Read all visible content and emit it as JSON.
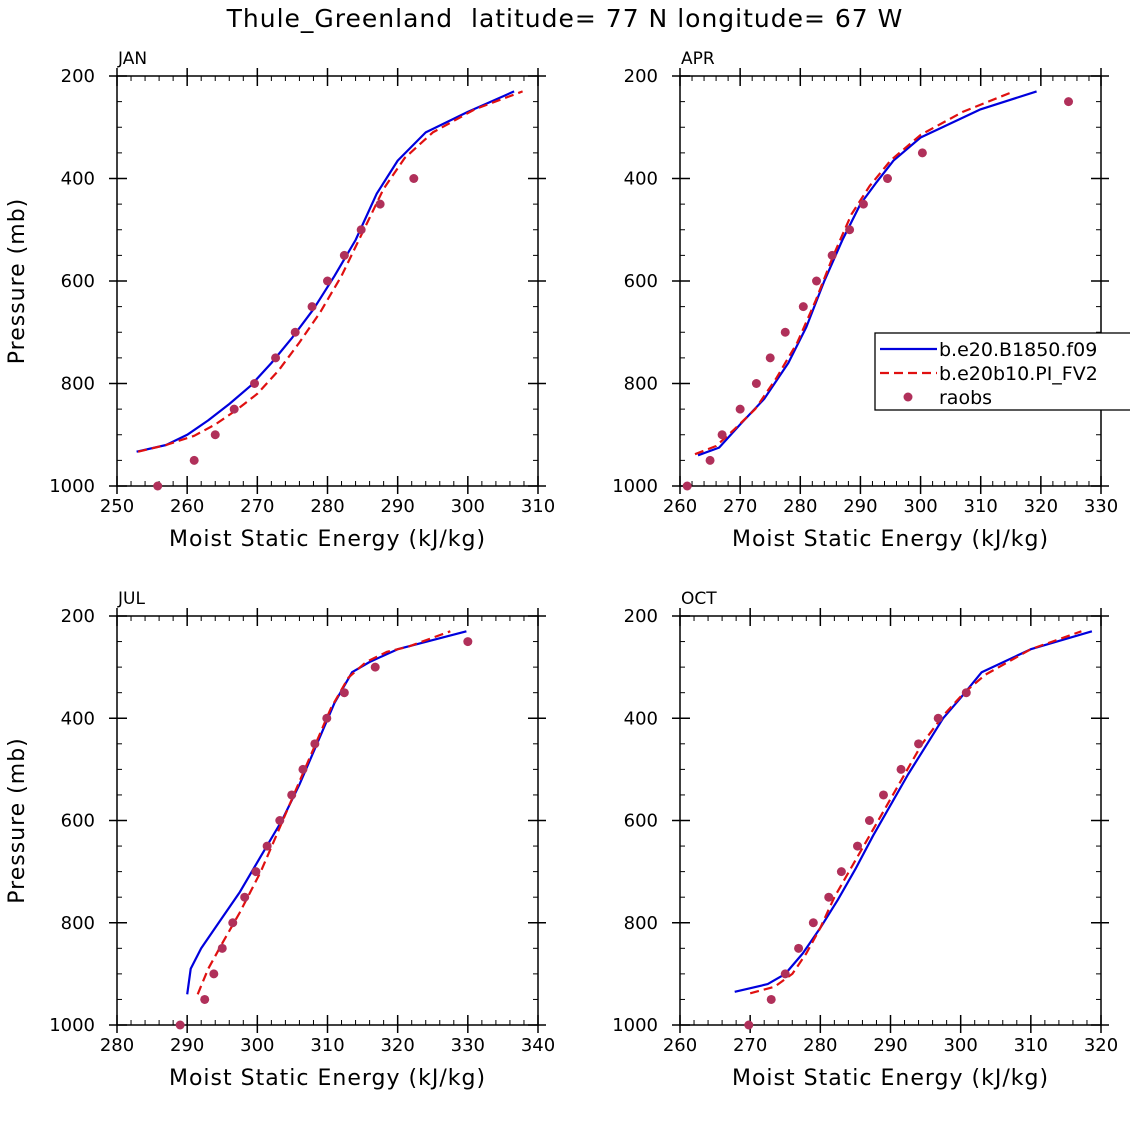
{
  "figure": {
    "title": "Thule_Greenland  latitude= 77 N longitude= 67 W"
  },
  "colors": {
    "series_1": "#0000dd",
    "series_2": "#e01010",
    "observations": "#b0305a",
    "axes": "#000000",
    "background": "#ffffff"
  },
  "legend": {
    "placement": "right-middle of APR panel",
    "entries": [
      {
        "label": "b.e20.B1850.f09",
        "style": "solid-line",
        "color": "#0000dd"
      },
      {
        "label": "b.e20b10.PI_FV2",
        "style": "dashed-line",
        "color": "#e01010"
      },
      {
        "label": "raobs",
        "style": "marker",
        "color": "#b0305a"
      }
    ]
  },
  "chart_data": [
    {
      "type": "line",
      "panel": "JAN",
      "xlabel": "Moist Static Energy (kJ/kg)",
      "ylabel": "Pressure (mb)",
      "xlim": [
        250,
        310
      ],
      "ylim": [
        1000,
        200
      ],
      "xticks": [
        250,
        260,
        270,
        280,
        290,
        300,
        310
      ],
      "yticks": [
        200,
        400,
        600,
        800,
        1000
      ],
      "x_minor_step": 2,
      "y_minor_step": 50,
      "grid": false,
      "series": [
        {
          "name": "b.e20.B1850.f09",
          "style": "solid",
          "color": "#0000dd",
          "x": [
            252.8,
            257,
            260,
            263,
            266,
            269,
            272,
            275,
            278,
            281,
            284,
            287,
            290,
            294,
            300,
            306.6
          ],
          "y": [
            933,
            920,
            900,
            872,
            840,
            805,
            760,
            710,
            655,
            590,
            520,
            430,
            365,
            310,
            270,
            230
          ]
        },
        {
          "name": "b.e20b10.PI_FV2",
          "style": "dashed",
          "color": "#e01010",
          "x": [
            253,
            257,
            261,
            264,
            267,
            270,
            273,
            276,
            279,
            282,
            285,
            288,
            291,
            295,
            301,
            307.8
          ],
          "y": [
            933,
            920,
            902,
            880,
            852,
            820,
            775,
            720,
            660,
            590,
            505,
            420,
            360,
            310,
            265,
            230
          ]
        },
        {
          "name": "raobs",
          "style": "marker",
          "color": "#b0305a",
          "x": [
            255.8,
            261,
            264,
            266.7,
            269.6,
            272.6,
            275.4,
            277.8,
            280,
            282.4,
            284.8,
            287.5,
            292.3
          ],
          "y": [
            1000,
            950,
            900,
            850,
            800,
            750,
            700,
            650,
            600,
            550,
            500,
            450,
            400
          ]
        }
      ]
    },
    {
      "type": "line",
      "panel": "APR",
      "xlabel": "Moist Static Energy (kJ/kg)",
      "ylabel": "",
      "xlim": [
        260,
        330
      ],
      "ylim": [
        1000,
        200
      ],
      "xticks": [
        260,
        270,
        280,
        290,
        300,
        310,
        320,
        330
      ],
      "yticks": [
        200,
        400,
        600,
        800,
        1000
      ],
      "x_minor_step": 2,
      "y_minor_step": 50,
      "grid": false,
      "series": [
        {
          "name": "b.e20.B1850.f09",
          "style": "solid",
          "color": "#0000dd",
          "x": [
            263,
            266.5,
            270,
            274,
            278,
            281,
            284,
            287,
            290,
            292.5,
            295.5,
            300,
            310,
            319.3
          ],
          "y": [
            940,
            925,
            880,
            830,
            760,
            690,
            600,
            520,
            450,
            410,
            365,
            320,
            265,
            230
          ]
        },
        {
          "name": "b.e20b10.PI_FV2",
          "style": "dashed",
          "color": "#e01010",
          "x": [
            262.5,
            266,
            269,
            272.5,
            276,
            279.5,
            282.5,
            285.5,
            288.5,
            291.5,
            295,
            300,
            307,
            315.5
          ],
          "y": [
            938,
            922,
            890,
            850,
            790,
            720,
            640,
            550,
            470,
            415,
            365,
            315,
            270,
            230
          ]
        },
        {
          "name": "raobs",
          "style": "marker",
          "color": "#b0305a",
          "x": [
            261.2,
            265,
            267,
            270,
            272.7,
            275,
            277.5,
            280.5,
            282.7,
            285.3,
            288.2,
            290.5,
            294.5,
            300.3,
            324.6
          ],
          "y": [
            1000,
            950,
            900,
            850,
            800,
            750,
            700,
            650,
            600,
            550,
            500,
            450,
            400,
            350,
            250
          ]
        }
      ]
    },
    {
      "type": "line",
      "panel": "JUL",
      "xlabel": "Moist Static Energy (kJ/kg)",
      "ylabel": "Pressure (mb)",
      "xlim": [
        280,
        340
      ],
      "ylim": [
        1000,
        200
      ],
      "xticks": [
        280,
        290,
        300,
        310,
        320,
        330,
        340
      ],
      "yticks": [
        200,
        400,
        600,
        800,
        1000
      ],
      "x_minor_step": 2,
      "y_minor_step": 50,
      "grid": false,
      "series": [
        {
          "name": "b.e20.B1850.f09",
          "style": "solid",
          "color": "#0000dd",
          "x": [
            290,
            290.5,
            292,
            294.5,
            297.5,
            300.5,
            303.5,
            306,
            308.5,
            311,
            313.5,
            316,
            320,
            329.8
          ],
          "y": [
            940,
            890,
            850,
            800,
            740,
            670,
            600,
            530,
            450,
            370,
            310,
            290,
            265,
            230
          ]
        },
        {
          "name": "b.e20b10.PI_FV2",
          "style": "dashed",
          "color": "#e01010",
          "x": [
            291.5,
            293,
            295,
            297.5,
            300.5,
            303,
            305.5,
            308,
            310.5,
            313,
            315.5,
            318.5,
            321.5,
            327.5
          ],
          "y": [
            940,
            890,
            840,
            780,
            700,
            620,
            540,
            460,
            380,
            320,
            290,
            270,
            260,
            230
          ]
        },
        {
          "name": "raobs",
          "style": "marker",
          "color": "#b0305a",
          "x": [
            289,
            292.5,
            293.8,
            295,
            296.5,
            298.2,
            299.8,
            301.4,
            303.2,
            304.9,
            306.5,
            308.2,
            309.9,
            312.4,
            316.8,
            330
          ],
          "y": [
            1000,
            950,
            900,
            850,
            800,
            750,
            700,
            650,
            600,
            550,
            500,
            450,
            400,
            350,
            300,
            250
          ]
        }
      ]
    },
    {
      "type": "line",
      "panel": "OCT",
      "xlabel": "Moist Static Energy (kJ/kg)",
      "ylabel": "",
      "xlim": [
        260,
        320
      ],
      "ylim": [
        1000,
        200
      ],
      "xticks": [
        260,
        270,
        280,
        290,
        300,
        310,
        320
      ],
      "yticks": [
        200,
        400,
        600,
        800,
        1000
      ],
      "x_minor_step": 2,
      "y_minor_step": 50,
      "grid": false,
      "series": [
        {
          "name": "b.e20.B1850.f09",
          "style": "solid",
          "color": "#0000dd",
          "x": [
            267.8,
            272.5,
            275,
            277.5,
            280,
            282.5,
            285,
            287.5,
            290,
            292.5,
            295,
            297.5,
            300,
            303,
            310,
            318.7
          ],
          "y": [
            935,
            920,
            900,
            860,
            810,
            755,
            695,
            630,
            570,
            510,
            455,
            400,
            360,
            310,
            265,
            230
          ]
        },
        {
          "name": "b.e20b10.PI_FV2",
          "style": "dashed",
          "color": "#e01010",
          "x": [
            270,
            273.5,
            276,
            278,
            280,
            282,
            284.5,
            287,
            289.5,
            292,
            294.5,
            297.5,
            300.5,
            303.5,
            310,
            317.2
          ],
          "y": [
            938,
            925,
            900,
            860,
            810,
            750,
            690,
            630,
            570,
            510,
            450,
            395,
            350,
            315,
            265,
            230
          ]
        },
        {
          "name": "raobs",
          "style": "marker",
          "color": "#b0305a",
          "x": [
            269.8,
            273,
            275,
            276.9,
            279,
            281.2,
            283,
            285.3,
            287,
            289,
            291.5,
            294,
            296.8,
            300.8
          ],
          "y": [
            1000,
            950,
            900,
            850,
            800,
            750,
            700,
            650,
            600,
            550,
            500,
            450,
            400,
            350
          ]
        }
      ]
    }
  ]
}
